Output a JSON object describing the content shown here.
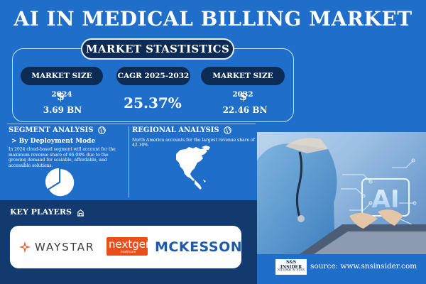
{
  "title": "AI IN MEDICAL BILLING MARKET",
  "market_statistics": {
    "heading": "MARKET STASTISTICS",
    "stats": [
      {
        "label": "MARKET SIZE 2024",
        "currency": "$",
        "value": "3.69 BN"
      },
      {
        "label": "CAGR 2025-2032",
        "currency": "",
        "value": "25.37%"
      },
      {
        "label": "MARKET SIZE 2032",
        "currency": "$",
        "value": "22.46 BN"
      }
    ]
  },
  "segment_analysis": {
    "heading": "SEGMENT ANALYSIS",
    "subheading": "> By Deployment Mode",
    "text": "In 2024 cloud-based segment will account for the maximum revenue share of 66.08% due to the growing demand for scalable, affordable, and accessible solutions.",
    "pie_share": 66.08
  },
  "regional_analysis": {
    "heading": "REGIONAL ANALYSIS",
    "text": "North America accounts for the largest revenue share of 42.10%"
  },
  "key_players": {
    "heading": "KEY PLAYERS",
    "logos": {
      "waystar": "WAYSTAR",
      "nextgen": "nextgen",
      "nextgen_sub": "healthcare",
      "mckesson": "MCKESSON"
    }
  },
  "source": {
    "logo_line1": "S&S INSIDER",
    "logo_line2": "Strategy & Stats",
    "text": "source: www.snsinsider.com"
  },
  "colors": {
    "background": "#1f6ec9",
    "navy": "#0c2c55",
    "waystar_orange": "#e8612c",
    "nextgen_orange": "#e94e1b",
    "mckesson_blue": "#1f5aa8"
  }
}
